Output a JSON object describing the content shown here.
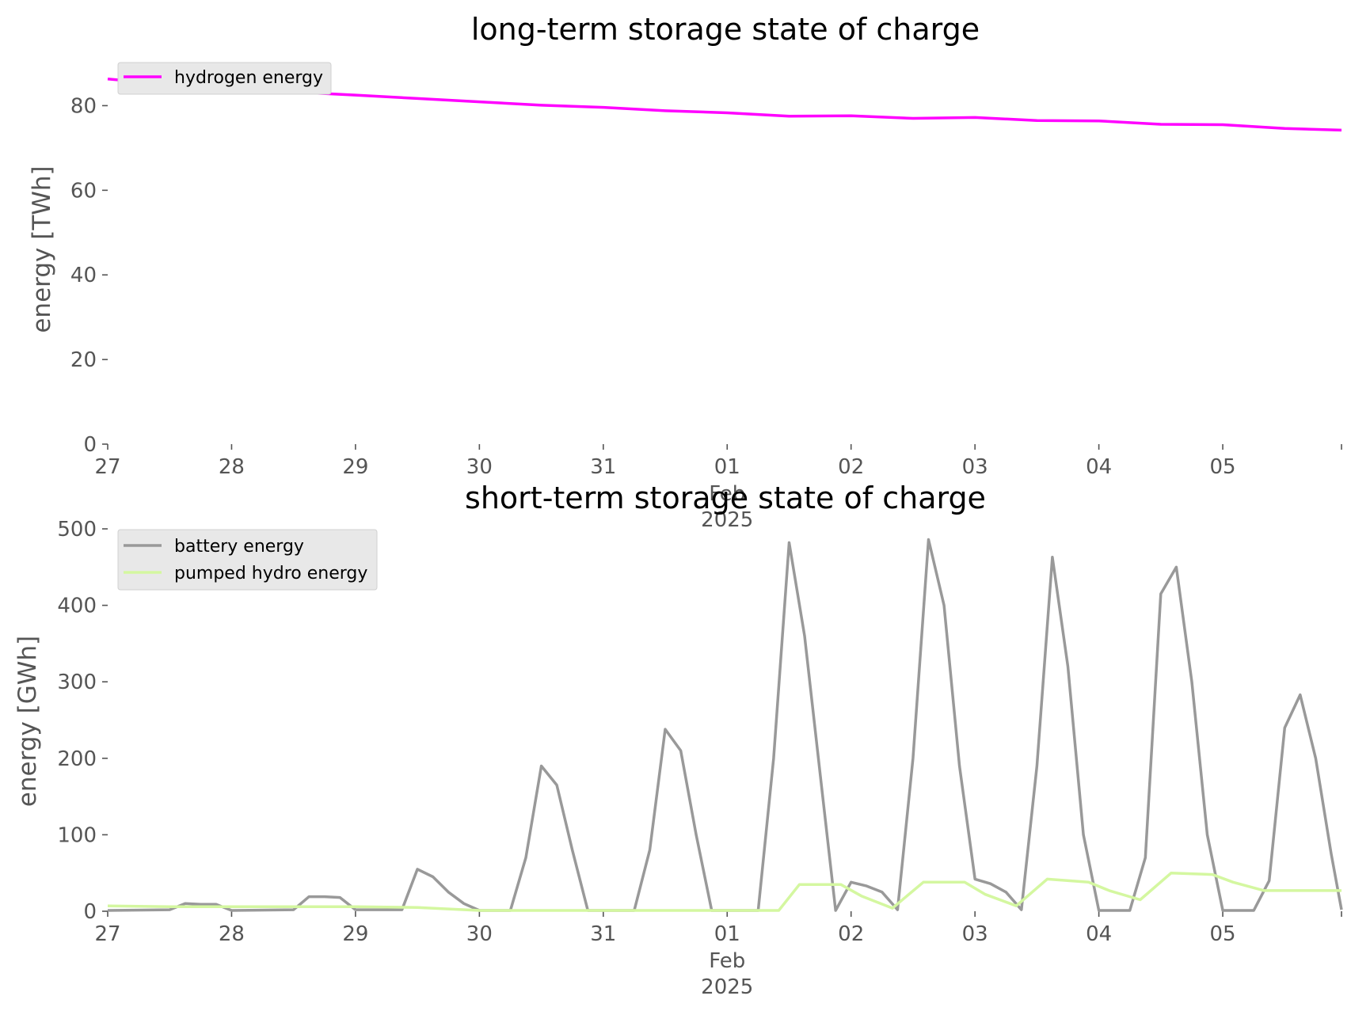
{
  "chart_data": [
    {
      "type": "line",
      "title": "long-term storage state of charge",
      "ylabel": "energy [TWh]",
      "xlabel": "",
      "ylim": [
        0,
        90
      ],
      "yticks": [
        0,
        20,
        40,
        60,
        80
      ],
      "xlim": [
        "2025-01-27",
        "2025-02-05T23:00"
      ],
      "xticks": [
        {
          "date": "2025-01-27",
          "label": "27"
        },
        {
          "date": "2025-01-28",
          "label": "28"
        },
        {
          "date": "2025-01-29",
          "label": "29"
        },
        {
          "date": "2025-01-30",
          "label": "30"
        },
        {
          "date": "2025-01-31",
          "label": "31"
        },
        {
          "date": "2025-02-01",
          "label": "01"
        },
        {
          "date": "2025-02-02",
          "label": "02"
        },
        {
          "date": "2025-02-03",
          "label": "03"
        },
        {
          "date": "2025-02-04",
          "label": "04"
        },
        {
          "date": "2025-02-05",
          "label": "05"
        }
      ],
      "xtick_sublabels": {
        "month": "Feb",
        "year": "2025"
      },
      "grid": false,
      "legend": "top-left",
      "x": [
        "2025-01-27T00:00",
        "2025-01-27T12:00",
        "2025-01-28T00:00",
        "2025-01-28T12:00",
        "2025-01-29T00:00",
        "2025-01-29T12:00",
        "2025-01-30T00:00",
        "2025-01-30T12:00",
        "2025-01-31T00:00",
        "2025-01-31T12:00",
        "2025-02-01T00:00",
        "2025-02-01T12:00",
        "2025-02-02T00:00",
        "2025-02-02T12:00",
        "2025-02-03T00:00",
        "2025-02-03T12:00",
        "2025-02-04T00:00",
        "2025-02-04T12:00",
        "2025-02-05T00:00",
        "2025-02-05T12:00",
        "2025-02-05T23:00"
      ],
      "series": [
        {
          "name": "hydrogen energy",
          "color": "#ff00ff",
          "values": [
            86.3,
            85.0,
            84.0,
            83.2,
            82.5,
            81.7,
            80.9,
            80.1,
            79.6,
            78.8,
            78.3,
            77.5,
            77.6,
            77.0,
            77.2,
            76.5,
            76.4,
            75.6,
            75.5,
            74.6,
            74.2
          ]
        }
      ]
    },
    {
      "type": "line",
      "title": "short-term storage state of charge",
      "ylabel": "energy [GWh]",
      "xlabel": "",
      "ylim": [
        0,
        500
      ],
      "yticks": [
        0,
        100,
        200,
        300,
        400,
        500
      ],
      "xlim": [
        "2025-01-27",
        "2025-02-05T23:00"
      ],
      "xticks": [
        {
          "date": "2025-01-27",
          "label": "27"
        },
        {
          "date": "2025-01-28",
          "label": "28"
        },
        {
          "date": "2025-01-29",
          "label": "29"
        },
        {
          "date": "2025-01-30",
          "label": "30"
        },
        {
          "date": "2025-01-31",
          "label": "31"
        },
        {
          "date": "2025-02-01",
          "label": "01"
        },
        {
          "date": "2025-02-02",
          "label": "02"
        },
        {
          "date": "2025-02-03",
          "label": "03"
        },
        {
          "date": "2025-02-04",
          "label": "04"
        },
        {
          "date": "2025-02-05",
          "label": "05"
        }
      ],
      "xtick_sublabels": {
        "month": "Feb",
        "year": "2025"
      },
      "grid": false,
      "legend": "top-left",
      "series": [
        {
          "name": "battery energy",
          "color": "#999999",
          "x": [
            "2025-01-27T00:00",
            "2025-01-27T12:00",
            "2025-01-27T15:00",
            "2025-01-27T18:00",
            "2025-01-27T21:00",
            "2025-01-28T00:00",
            "2025-01-28T12:00",
            "2025-01-28T15:00",
            "2025-01-28T18:00",
            "2025-01-28T21:00",
            "2025-01-29T00:00",
            "2025-01-29T09:00",
            "2025-01-29T12:00",
            "2025-01-29T15:00",
            "2025-01-29T18:00",
            "2025-01-29T21:00",
            "2025-01-30T00:00",
            "2025-01-30T06:00",
            "2025-01-30T09:00",
            "2025-01-30T12:00",
            "2025-01-30T15:00",
            "2025-01-30T18:00",
            "2025-01-30T21:00",
            "2025-01-31T00:00",
            "2025-01-31T06:00",
            "2025-01-31T09:00",
            "2025-01-31T12:00",
            "2025-01-31T15:00",
            "2025-01-31T18:00",
            "2025-01-31T21:00",
            "2025-02-01T00:00",
            "2025-02-01T06:00",
            "2025-02-01T09:00",
            "2025-02-01T12:00",
            "2025-02-01T15:00",
            "2025-02-01T18:00",
            "2025-02-01T21:00",
            "2025-02-02T00:00",
            "2025-02-02T03:00",
            "2025-02-02T06:00",
            "2025-02-02T09:00",
            "2025-02-02T12:00",
            "2025-02-02T15:00",
            "2025-02-02T18:00",
            "2025-02-02T21:00",
            "2025-02-03T00:00",
            "2025-02-03T03:00",
            "2025-02-03T06:00",
            "2025-02-03T09:00",
            "2025-02-03T12:00",
            "2025-02-03T15:00",
            "2025-02-03T18:00",
            "2025-02-03T21:00",
            "2025-02-04T00:00",
            "2025-02-04T06:00",
            "2025-02-04T09:00",
            "2025-02-04T12:00",
            "2025-02-04T15:00",
            "2025-02-04T18:00",
            "2025-02-04T21:00",
            "2025-02-05T00:00",
            "2025-02-05T06:00",
            "2025-02-05T09:00",
            "2025-02-05T12:00",
            "2025-02-05T15:00",
            "2025-02-05T18:00",
            "2025-02-05T21:00",
            "2025-02-05T23:00"
          ],
          "values": [
            1,
            2,
            10,
            9,
            9,
            1,
            2,
            19,
            19,
            18,
            2,
            2,
            55,
            45,
            25,
            10,
            1,
            1,
            70,
            190,
            165,
            80,
            1,
            1,
            1,
            80,
            238,
            210,
            100,
            1,
            1,
            1,
            200,
            482,
            360,
            180,
            1,
            38,
            33,
            25,
            2,
            200,
            486,
            400,
            190,
            42,
            36,
            25,
            2,
            190,
            463,
            320,
            100,
            1,
            1,
            70,
            415,
            450,
            300,
            100,
            1,
            1,
            40,
            240,
            283,
            200,
            75,
            2
          ]
        },
        {
          "name": "pumped hydro energy",
          "color": "#d4f7a0",
          "x": [
            "2025-01-27T00:00",
            "2025-01-27T12:00",
            "2025-01-28T00:00",
            "2025-01-28T12:00",
            "2025-01-29T00:00",
            "2025-01-29T12:00",
            "2025-01-30T00:00",
            "2025-01-30T12:00",
            "2025-01-31T00:00",
            "2025-01-31T12:00",
            "2025-02-01T00:00",
            "2025-02-01T10:00",
            "2025-02-01T14:00",
            "2025-02-01T22:00",
            "2025-02-02T02:00",
            "2025-02-02T08:00",
            "2025-02-02T14:00",
            "2025-02-02T22:00",
            "2025-02-03T02:00",
            "2025-02-03T08:00",
            "2025-02-03T14:00",
            "2025-02-03T22:00",
            "2025-02-04T02:00",
            "2025-02-04T08:00",
            "2025-02-04T14:00",
            "2025-02-04T22:00",
            "2025-02-05T02:00",
            "2025-02-05T08:00",
            "2025-02-05T23:00"
          ],
          "values": [
            7,
            6,
            6,
            6,
            6,
            5,
            1,
            1,
            1,
            1,
            1,
            1,
            35,
            35,
            20,
            4,
            38,
            38,
            22,
            7,
            42,
            38,
            27,
            15,
            50,
            48,
            38,
            27,
            27
          ]
        }
      ]
    }
  ]
}
